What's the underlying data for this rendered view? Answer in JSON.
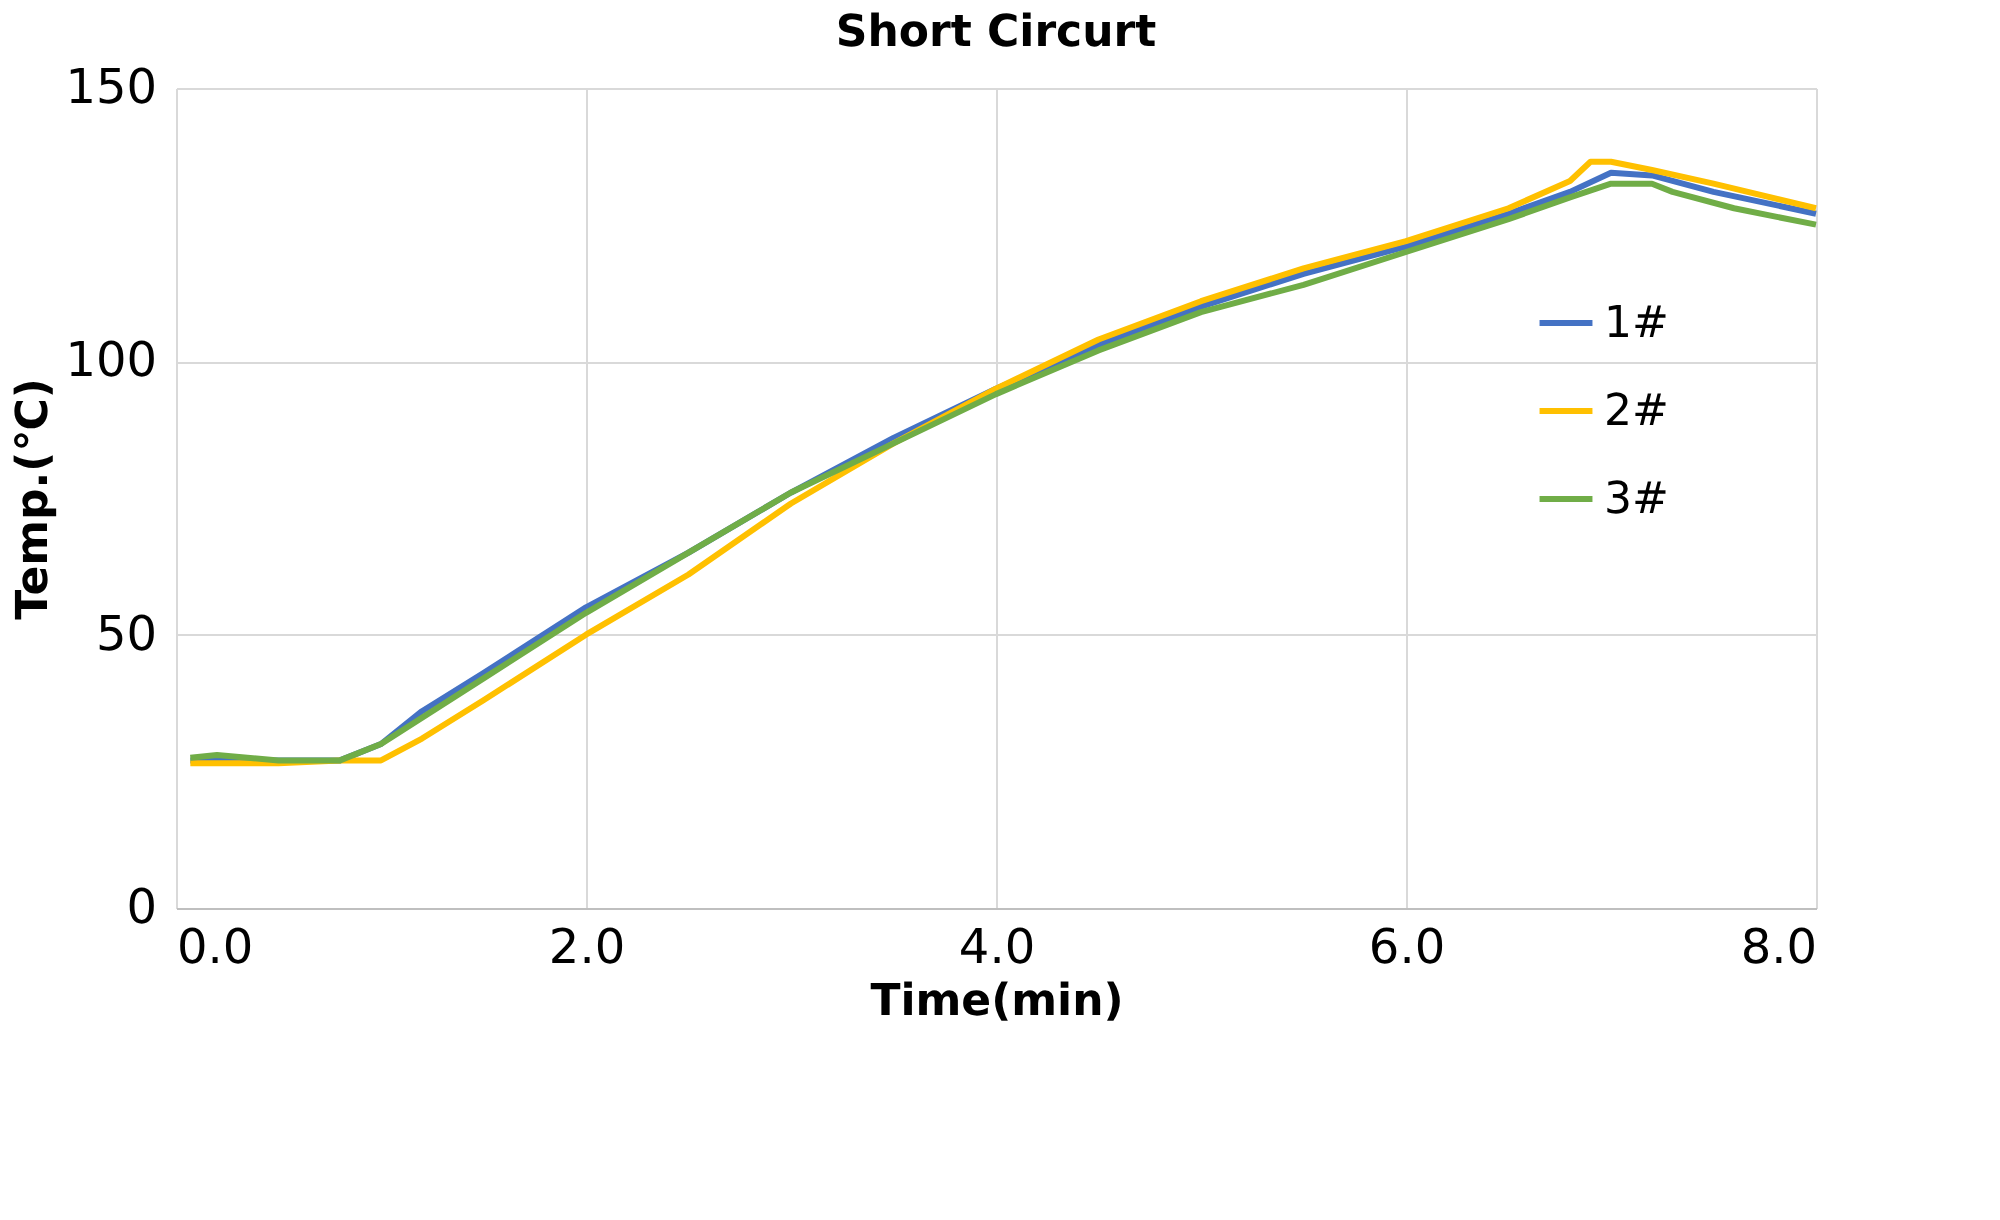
{
  "chart_data": {
    "type": "line",
    "title": "Short Circurt",
    "xlabel": "Time(min)",
    "ylabel": "Temp.(℃)",
    "xlim": [
      0,
      8
    ],
    "xticks": [
      {
        "value": 0,
        "label": "0.0"
      },
      {
        "value": 2,
        "label": "2.0"
      },
      {
        "value": 4,
        "label": "4.0"
      },
      {
        "value": 6,
        "label": "6.0"
      },
      {
        "value": 8,
        "label": "8.0"
      }
    ],
    "ylim": [
      0,
      150
    ],
    "yticks": [
      0,
      50,
      100,
      150
    ],
    "grid": true,
    "legend": "right",
    "line_style": "solid",
    "series": [
      {
        "name": "1#",
        "color": "#4472c4",
        "x": [
          0.07,
          0.3,
          0.5,
          0.8,
          1.0,
          1.2,
          1.5,
          2.0,
          2.5,
          3.0,
          3.5,
          4.0,
          4.5,
          5.0,
          5.5,
          6.0,
          6.5,
          6.8,
          7.0,
          7.2,
          7.5,
          8.0
        ],
        "values": [
          27,
          27,
          27,
          27,
          30,
          36,
          43,
          55,
          65,
          76,
          86,
          95,
          103,
          110,
          116,
          121,
          127,
          131,
          134.5,
          134,
          131,
          127
        ]
      },
      {
        "name": "2#",
        "color": "#ffc000",
        "x": [
          0.07,
          0.3,
          0.5,
          0.8,
          1.0,
          1.2,
          1.5,
          2.0,
          2.5,
          3.0,
          3.5,
          4.0,
          4.5,
          5.0,
          5.5,
          6.0,
          6.5,
          6.8,
          6.9,
          7.0,
          7.2,
          7.5,
          8.0
        ],
        "values": [
          26.5,
          26.5,
          26.5,
          27,
          27,
          31,
          38,
          50,
          61,
          74,
          85,
          95,
          104,
          111,
          117,
          122,
          128,
          133,
          136.5,
          136.5,
          135,
          132.5,
          128
        ]
      },
      {
        "name": "3#",
        "color": "#70ad47",
        "x": [
          0.07,
          0.2,
          0.5,
          0.8,
          1.0,
          1.5,
          2.0,
          2.5,
          3.0,
          3.5,
          4.0,
          4.5,
          5.0,
          5.5,
          6.0,
          6.5,
          6.8,
          7.0,
          7.2,
          7.3,
          7.6,
          8.0
        ],
        "values": [
          27.5,
          28,
          27,
          27,
          30,
          42,
          54,
          65,
          76,
          85,
          94,
          102,
          109,
          114,
          120,
          126,
          130,
          132.5,
          132.5,
          131,
          128,
          125
        ]
      }
    ]
  }
}
